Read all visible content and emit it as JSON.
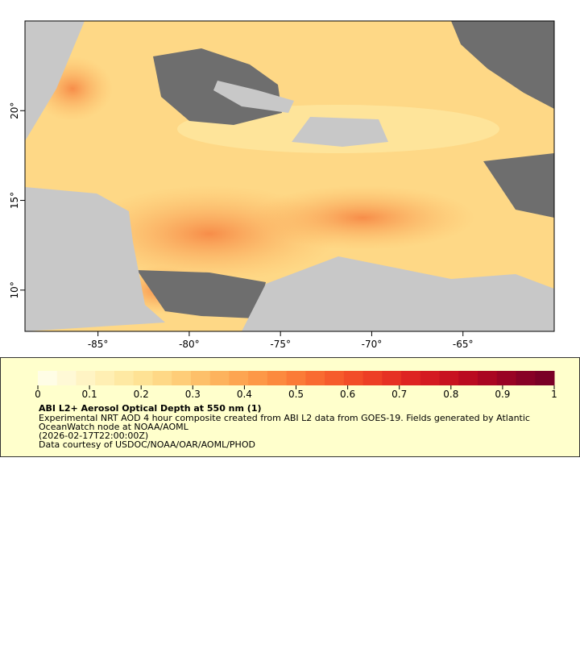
{
  "chart_data": {
    "type": "map",
    "xlim": [
      -89,
      -60
    ],
    "ylim": [
      7.7,
      25
    ],
    "xticks": [
      {
        "value": -85,
        "label": "-85°"
      },
      {
        "value": -80,
        "label": "-80°"
      },
      {
        "value": -75,
        "label": "-75°"
      },
      {
        "value": -70,
        "label": "-70°"
      },
      {
        "value": -65,
        "label": "-65°"
      }
    ],
    "yticks": [
      {
        "value": 10,
        "label": "10°"
      },
      {
        "value": 15,
        "label": "15°"
      },
      {
        "value": 20,
        "label": "20°"
      }
    ],
    "colorbar": {
      "lim": [
        0,
        1
      ],
      "ticks": [
        0,
        0.1,
        0.2,
        0.3,
        0.4,
        0.5,
        0.6,
        0.7,
        0.8,
        0.9,
        1
      ],
      "colors": [
        "#fffde6",
        "#fff9d6",
        "#fff4c4",
        "#ffefb3",
        "#fee9a3",
        "#fee294",
        "#fed886",
        "#fecd78",
        "#fdc06a",
        "#fdb35d",
        "#fda551",
        "#fd9847",
        "#fc8a3e",
        "#fb7b37",
        "#f96b31",
        "#f65c2c",
        "#f24d28",
        "#ed3f25",
        "#e63123",
        "#de2422",
        "#d41a21",
        "#c81220",
        "#ba0b20",
        "#aa0622",
        "#990324",
        "#880126",
        "#7a0026"
      ]
    },
    "legend": {
      "title": "ABI L2+ Aerosol Optical Depth at 550 nm (1)",
      "lines": [
        "Experimental NRT AOD 4 hour composite created from ABI L2 data from GOES-19. Fields generated by Atlantic",
        "OceanWatch node at NOAA/AOML",
        "(2026-02-17T22:00:00Z)",
        "Data courtesy of USDOC/NOAA/OAR/AOML/PHOD"
      ]
    }
  }
}
